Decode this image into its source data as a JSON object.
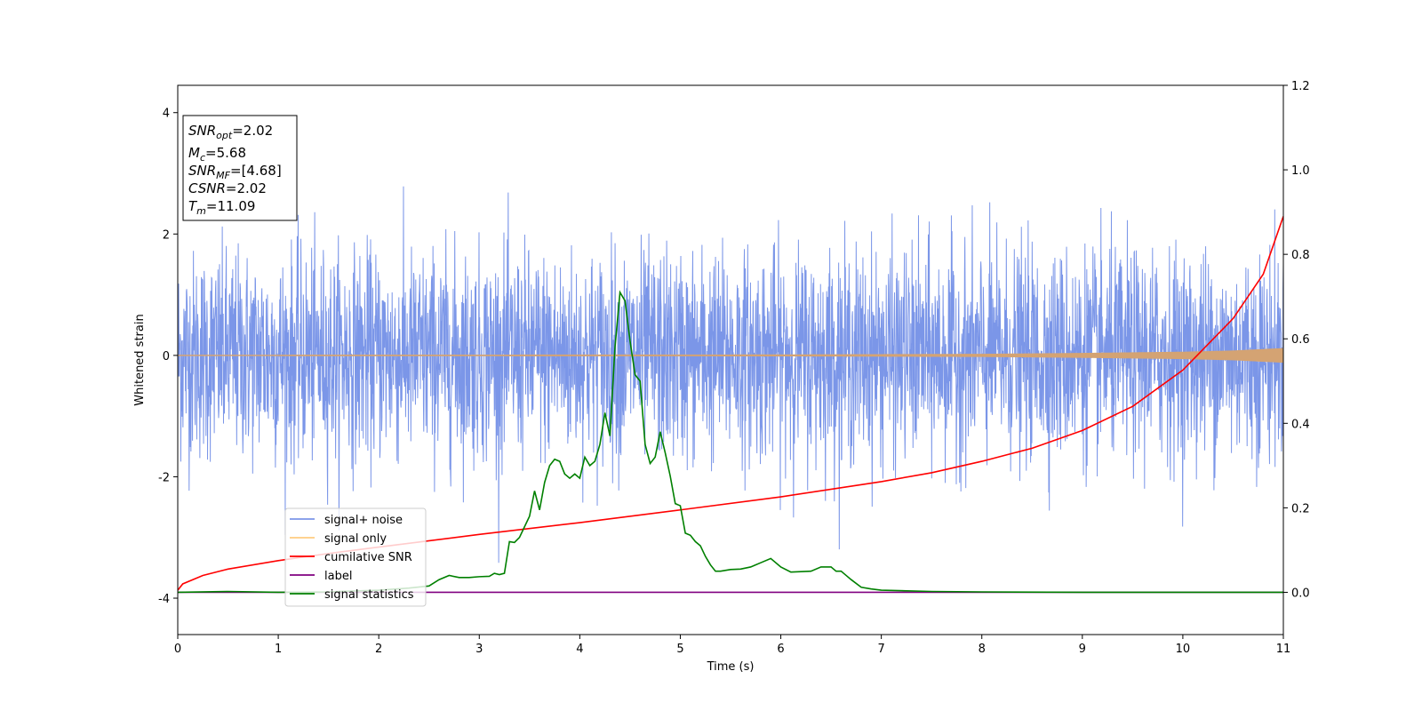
{
  "chart_data": {
    "type": "line",
    "xlabel": "Time (s)",
    "ylabel": "Whitened strain",
    "xlim": [
      0,
      11
    ],
    "ylim": [
      -4.6,
      4.45
    ],
    "y2lim": [
      -0.1,
      1.2
    ],
    "xticks": [
      0,
      1,
      2,
      3,
      4,
      5,
      6,
      7,
      8,
      9,
      10,
      11
    ],
    "yticks": [
      -4,
      -2,
      0,
      2,
      4
    ],
    "y2ticks": [
      "0.0",
      "0.2",
      "0.4",
      "0.6",
      "0.8",
      "1.0",
      "1.2"
    ],
    "info_box": {
      "snr_opt": {
        "symbol": "SNR",
        "sub": "opt",
        "value": "=2.02"
      },
      "mc": {
        "symbol": "M",
        "sub": "c",
        "value": "=5.68"
      },
      "snr_mf": {
        "symbol": "SNR",
        "sub": "MF",
        "value": "=[4.68]"
      },
      "csnr": {
        "symbol": "CSNR",
        "sub": "",
        "value": "=2.02"
      },
      "tm": {
        "symbol": "T",
        "sub": "m",
        "value": "=11.09"
      }
    },
    "legend": {
      "placement": "lower-left",
      "entries": [
        {
          "label": "signal+ noise",
          "color": "#7b96e8"
        },
        {
          "label": "signal only",
          "color": "#ffcc80"
        },
        {
          "label": "cumilative SNR",
          "color": "#ff0000"
        },
        {
          "label": "label",
          "color": "#800080"
        },
        {
          "label": "signal statistics",
          "color": "#008000"
        }
      ]
    },
    "series": [
      {
        "name": "signal+ noise",
        "axis": "left",
        "style": "noise",
        "color": "#7b96e8",
        "noise_std": 0.85,
        "noise_peak": 3.8
      },
      {
        "name": "signal only",
        "axis": "left",
        "style": "chirp-envelope",
        "color": "#d4a373",
        "x": [
          0,
          6,
          8,
          9,
          10,
          10.5,
          11
        ],
        "amp": [
          0.0,
          0.005,
          0.015,
          0.03,
          0.05,
          0.07,
          0.11
        ]
      },
      {
        "name": "cumilative SNR",
        "axis": "right",
        "color": "#ff0000",
        "x": [
          0,
          0.05,
          0.25,
          0.5,
          1,
          1.5,
          2,
          3,
          4,
          5,
          6,
          7,
          7.5,
          8,
          8.5,
          9,
          9.5,
          10,
          10.5,
          10.8,
          11
        ],
        "y": [
          0.005,
          0.02,
          0.04,
          0.055,
          0.075,
          0.092,
          0.107,
          0.137,
          0.165,
          0.195,
          0.226,
          0.262,
          0.283,
          0.31,
          0.341,
          0.383,
          0.44,
          0.526,
          0.648,
          0.753,
          0.89
        ]
      },
      {
        "name": "label",
        "axis": "right",
        "color": "#800080",
        "x": [
          0,
          11
        ],
        "y": [
          0,
          0
        ]
      },
      {
        "name": "signal statistics",
        "axis": "right",
        "color": "#008000",
        "x": [
          0,
          0.5,
          1,
          1.5,
          2,
          2.3,
          2.5,
          2.6,
          2.7,
          2.8,
          2.9,
          3.0,
          3.1,
          3.15,
          3.2,
          3.25,
          3.3,
          3.35,
          3.4,
          3.45,
          3.5,
          3.55,
          3.6,
          3.65,
          3.7,
          3.75,
          3.8,
          3.85,
          3.9,
          3.95,
          4.0,
          4.05,
          4.1,
          4.15,
          4.2,
          4.25,
          4.3,
          4.35,
          4.4,
          4.45,
          4.5,
          4.55,
          4.6,
          4.65,
          4.7,
          4.75,
          4.8,
          4.85,
          4.9,
          4.95,
          5.0,
          5.05,
          5.1,
          5.15,
          5.2,
          5.25,
          5.3,
          5.35,
          5.4,
          5.5,
          5.6,
          5.7,
          5.8,
          5.9,
          6.0,
          6.1,
          6.3,
          6.4,
          6.5,
          6.55,
          6.6,
          6.65,
          6.7,
          6.8,
          6.9,
          7.0,
          7.5,
          8,
          9,
          10,
          11
        ],
        "y": [
          0,
          0.002,
          0,
          0.001,
          0.005,
          0.01,
          0.015,
          0.03,
          0.04,
          0.035,
          0.035,
          0.037,
          0.038,
          0.045,
          0.042,
          0.045,
          0.12,
          0.118,
          0.13,
          0.155,
          0.18,
          0.24,
          0.195,
          0.26,
          0.3,
          0.315,
          0.31,
          0.28,
          0.27,
          0.28,
          0.27,
          0.32,
          0.3,
          0.31,
          0.35,
          0.425,
          0.37,
          0.58,
          0.71,
          0.69,
          0.595,
          0.515,
          0.5,
          0.35,
          0.305,
          0.32,
          0.38,
          0.33,
          0.275,
          0.21,
          0.205,
          0.14,
          0.135,
          0.12,
          0.11,
          0.085,
          0.065,
          0.05,
          0.05,
          0.054,
          0.055,
          0.06,
          0.07,
          0.08,
          0.06,
          0.048,
          0.05,
          0.06,
          0.06,
          0.05,
          0.05,
          0.04,
          0.03,
          0.012,
          0.008,
          0.005,
          0.002,
          0.001,
          0,
          0,
          0
        ]
      }
    ]
  }
}
